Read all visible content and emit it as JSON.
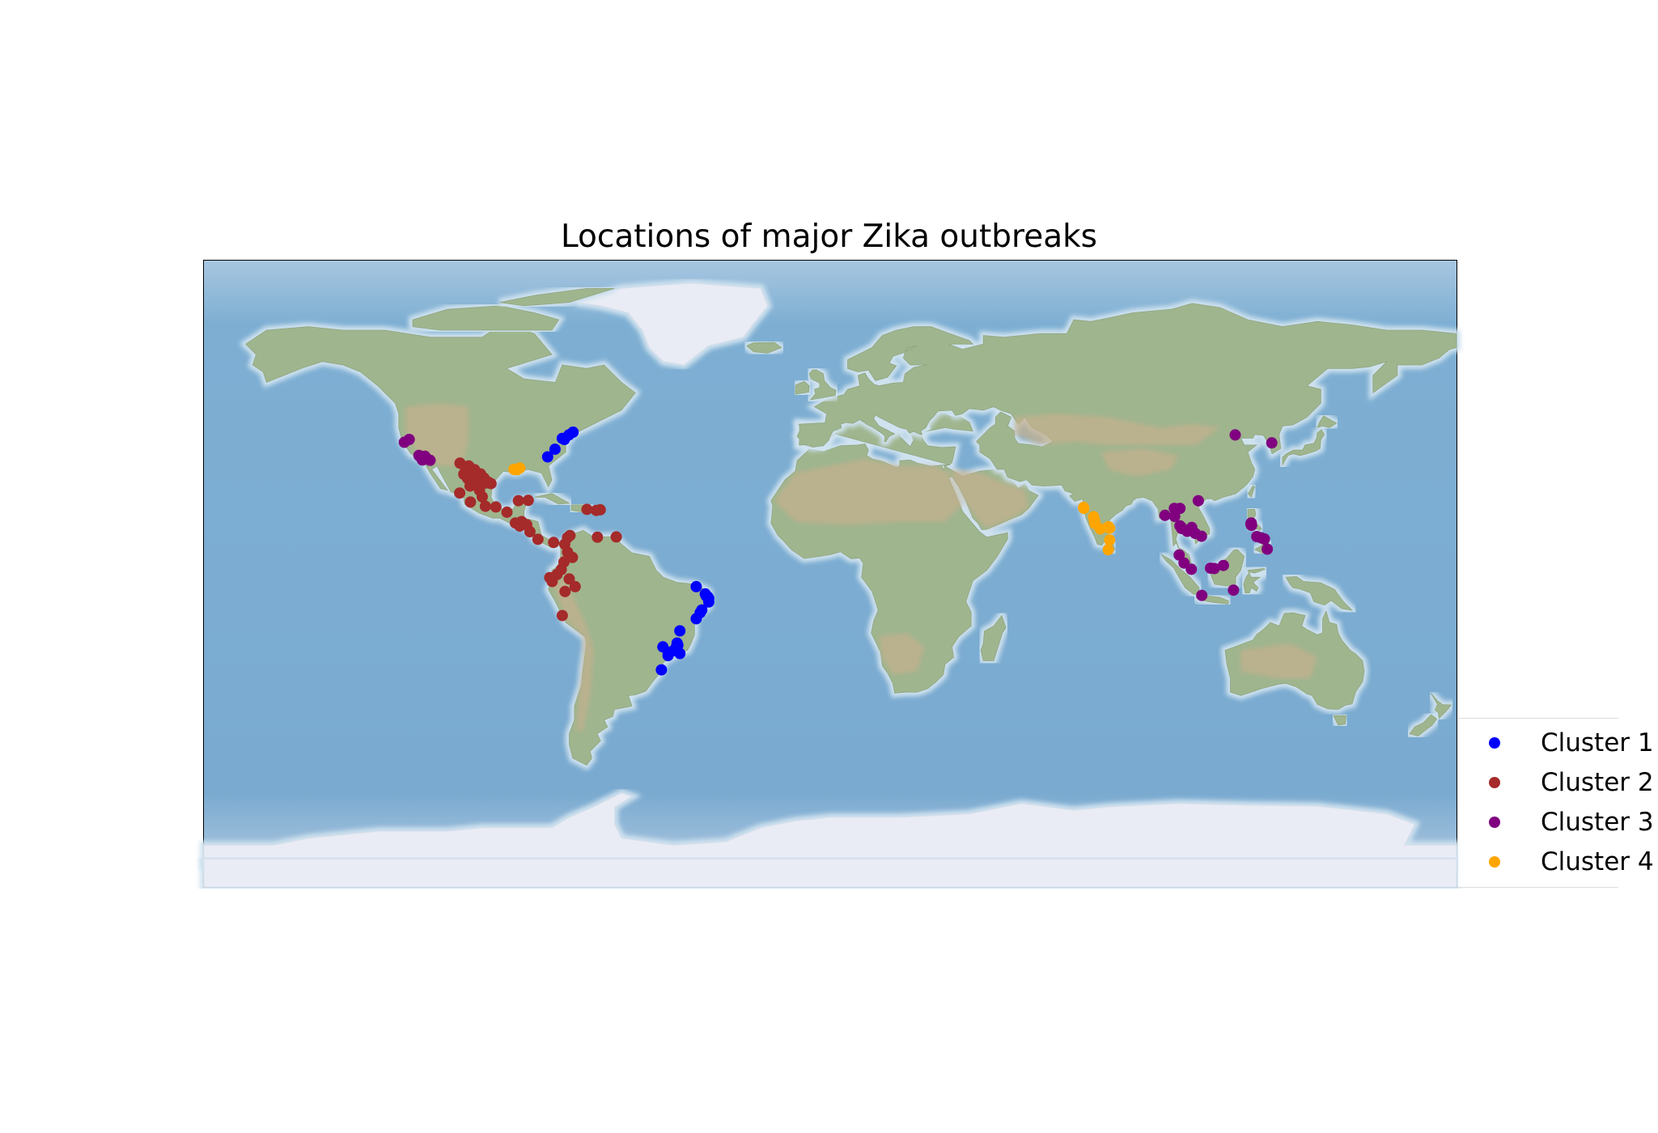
{
  "title": "Locations of major Zika outbreaks",
  "colors": {
    "ocean": "#7baed0",
    "land": "#9fb58e",
    "desert": "#c4b08e",
    "ice": "#e9ecf4"
  },
  "legend": {
    "items": [
      {
        "label": "Cluster 1",
        "color": "#0000ff"
      },
      {
        "label": "Cluster 2",
        "color": "#a52a2a"
      },
      {
        "label": "Cluster 3",
        "color": "#800080"
      },
      {
        "label": "Cluster 4",
        "color": "#ffa500"
      }
    ]
  },
  "chart_data": {
    "type": "scatter",
    "projection": "equirectangular",
    "xlim": [
      -180,
      180
    ],
    "ylim": [
      -90,
      90
    ],
    "series": [
      {
        "name": "Cluster 1",
        "color": "#0000ff",
        "points": [
          [
            -81.2,
            33.6
          ],
          [
            -79.1,
            35.8
          ],
          [
            -77.0,
            38.9
          ],
          [
            -76.4,
            38.6
          ],
          [
            -75.1,
            39.9
          ],
          [
            -73.9,
            40.7
          ],
          [
            -38.5,
            -3.7
          ],
          [
            -35.9,
            -5.8
          ],
          [
            -35.2,
            -6.6
          ],
          [
            -34.9,
            -7.1
          ],
          [
            -34.9,
            -8.1
          ],
          [
            -35.6,
            -6.4
          ],
          [
            -36.9,
            -10.4
          ],
          [
            -38.5,
            -12.9
          ],
          [
            -37.4,
            -11.2
          ],
          [
            -43.2,
            -16.4
          ],
          [
            -44.0,
            -19.9
          ],
          [
            -43.8,
            -20.5
          ],
          [
            -44.2,
            -21.0
          ],
          [
            -43.2,
            -22.9
          ],
          [
            -45.0,
            -22.1
          ],
          [
            -46.6,
            -23.5
          ],
          [
            -48.5,
            -27.6
          ],
          [
            -48.1,
            -21.0
          ],
          [
            -46.6,
            -22.5
          ]
        ]
      },
      {
        "name": "Cluster 2",
        "color": "#a52a2a",
        "points": [
          [
            -106.4,
            31.8
          ],
          [
            -103.9,
            31.0
          ],
          [
            -104.8,
            30.2
          ],
          [
            -104.0,
            29.2
          ],
          [
            -103.6,
            28.1
          ],
          [
            -102.1,
            27.3
          ],
          [
            -100.3,
            25.7
          ],
          [
            -100.5,
            28.7
          ],
          [
            -99.0,
            26.1
          ],
          [
            -101.4,
            26.9
          ],
          [
            -100.8,
            24.0
          ],
          [
            -98.2,
            26.3
          ],
          [
            -97.5,
            25.9
          ],
          [
            -99.5,
            27.5
          ],
          [
            -103.3,
            26.5
          ],
          [
            -104.2,
            27.4
          ],
          [
            -105.3,
            28.6
          ],
          [
            -102.2,
            29.9
          ],
          [
            -103.5,
            25.2
          ],
          [
            -100.0,
            22.1
          ],
          [
            -106.5,
            23.2
          ],
          [
            -103.4,
            20.6
          ],
          [
            -99.1,
            19.4
          ],
          [
            -96.1,
            19.2
          ],
          [
            -92.9,
            17.7
          ],
          [
            -89.6,
            21.0
          ],
          [
            -86.8,
            21.1
          ],
          [
            -90.5,
            14.6
          ],
          [
            -89.2,
            13.7
          ],
          [
            -88.7,
            15.0
          ],
          [
            -87.2,
            14.1
          ],
          [
            -86.3,
            12.1
          ],
          [
            -84.0,
            9.9
          ],
          [
            -79.5,
            9.0
          ],
          [
            -75.5,
            10.4
          ],
          [
            -74.8,
            11.0
          ],
          [
            -76.3,
            8.5
          ],
          [
            -75.5,
            6.2
          ],
          [
            -74.1,
            4.7
          ],
          [
            -76.5,
            3.4
          ],
          [
            -77.3,
            1.2
          ],
          [
            -78.5,
            -0.2
          ],
          [
            -79.9,
            -2.2
          ],
          [
            -80.6,
            -1.1
          ],
          [
            -75.0,
            -1.5
          ],
          [
            -77.0,
            -12.0
          ],
          [
            -76.2,
            -5.1
          ],
          [
            -73.3,
            -3.7
          ],
          [
            -66.9,
            10.5
          ],
          [
            -69.9,
            18.5
          ],
          [
            -67.2,
            18.2
          ],
          [
            -66.1,
            18.4
          ],
          [
            -61.5,
            10.6
          ]
        ]
      },
      {
        "name": "Cluster 3",
        "color": "#800080",
        "points": [
          [
            -122.4,
            37.8
          ],
          [
            -121.0,
            38.6
          ],
          [
            -118.2,
            34.0
          ],
          [
            -117.2,
            32.7
          ],
          [
            -116.5,
            33.8
          ],
          [
            -117.9,
            33.7
          ],
          [
            -115.0,
            32.6
          ],
          [
            96.2,
            16.8
          ],
          [
            98.9,
            18.8
          ],
          [
            100.5,
            18.8
          ],
          [
            99.0,
            16.5
          ],
          [
            100.5,
            13.8
          ],
          [
            100.9,
            13.4
          ],
          [
            101.0,
            13.0
          ],
          [
            102.6,
            12.2
          ],
          [
            104.9,
            11.6
          ],
          [
            102.5,
            12.4
          ],
          [
            103.9,
            13.3
          ],
          [
            106.7,
            10.8
          ],
          [
            105.8,
            21.0
          ],
          [
            101.7,
            3.1
          ],
          [
            103.8,
            1.3
          ],
          [
            100.3,
            5.4
          ],
          [
            109.3,
            1.6
          ],
          [
            110.4,
            1.5
          ],
          [
            113.0,
            2.4
          ],
          [
            115.9,
            -4.7
          ],
          [
            106.8,
            -6.2
          ],
          [
            121.0,
            14.6
          ],
          [
            120.9,
            14.3
          ],
          [
            121.1,
            13.9
          ],
          [
            122.6,
            10.7
          ],
          [
            124.8,
            10.0
          ],
          [
            125.6,
            7.1
          ],
          [
            123.9,
            10.3
          ],
          [
            116.4,
            39.9
          ],
          [
            126.9,
            37.6
          ]
        ]
      },
      {
        "name": "Cluster 4",
        "color": "#ffa500",
        "points": [
          [
            -90.0,
            29.9
          ],
          [
            -90.9,
            30.0
          ],
          [
            -89.2,
            30.4
          ],
          [
            72.8,
            19.1
          ],
          [
            72.9,
            18.8
          ],
          [
            75.7,
            16.4
          ],
          [
            75.9,
            15.5
          ],
          [
            76.0,
            15.0
          ],
          [
            76.1,
            14.4
          ],
          [
            77.6,
            12.9
          ],
          [
            80.3,
            13.1
          ],
          [
            80.0,
            13.5
          ],
          [
            79.9,
            6.9
          ],
          [
            80.3,
            9.7
          ]
        ]
      }
    ]
  }
}
